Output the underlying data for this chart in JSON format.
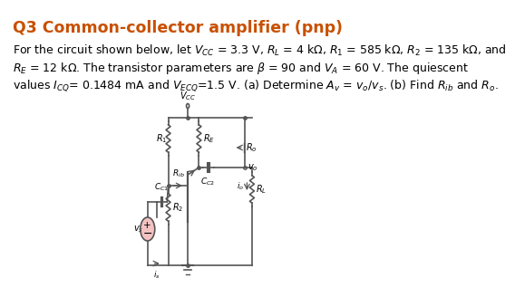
{
  "title": "Q3 Common-collector amplifier (pnp)",
  "title_color": "#c85000",
  "title_fontsize": 12.5,
  "body_text_lines": [
    "For the circuit shown below, let $V_{CC}$ = 3.3 V, $R_L$ = 4 kΩ, $R_1$ = 585 kΩ, $R_2$ = 135 kΩ, and",
    "$R_E$ = 12 kΩ. The transistor parameters are $\\beta$ = 90 and $V_A$ = 60 V. The quiescent",
    "values $I_{CQ}$= 0.1484 mA and $V_{ECQ}$=1.5 V. (a) Determine $A_v$ = $v_o$/$v_s$. (b) Find $R_{ib}$ and $R_o$."
  ],
  "body_fontsize": 9.0,
  "bg_color": "#ffffff",
  "circuit_color": "#555555",
  "label_fontsize": 7.0
}
